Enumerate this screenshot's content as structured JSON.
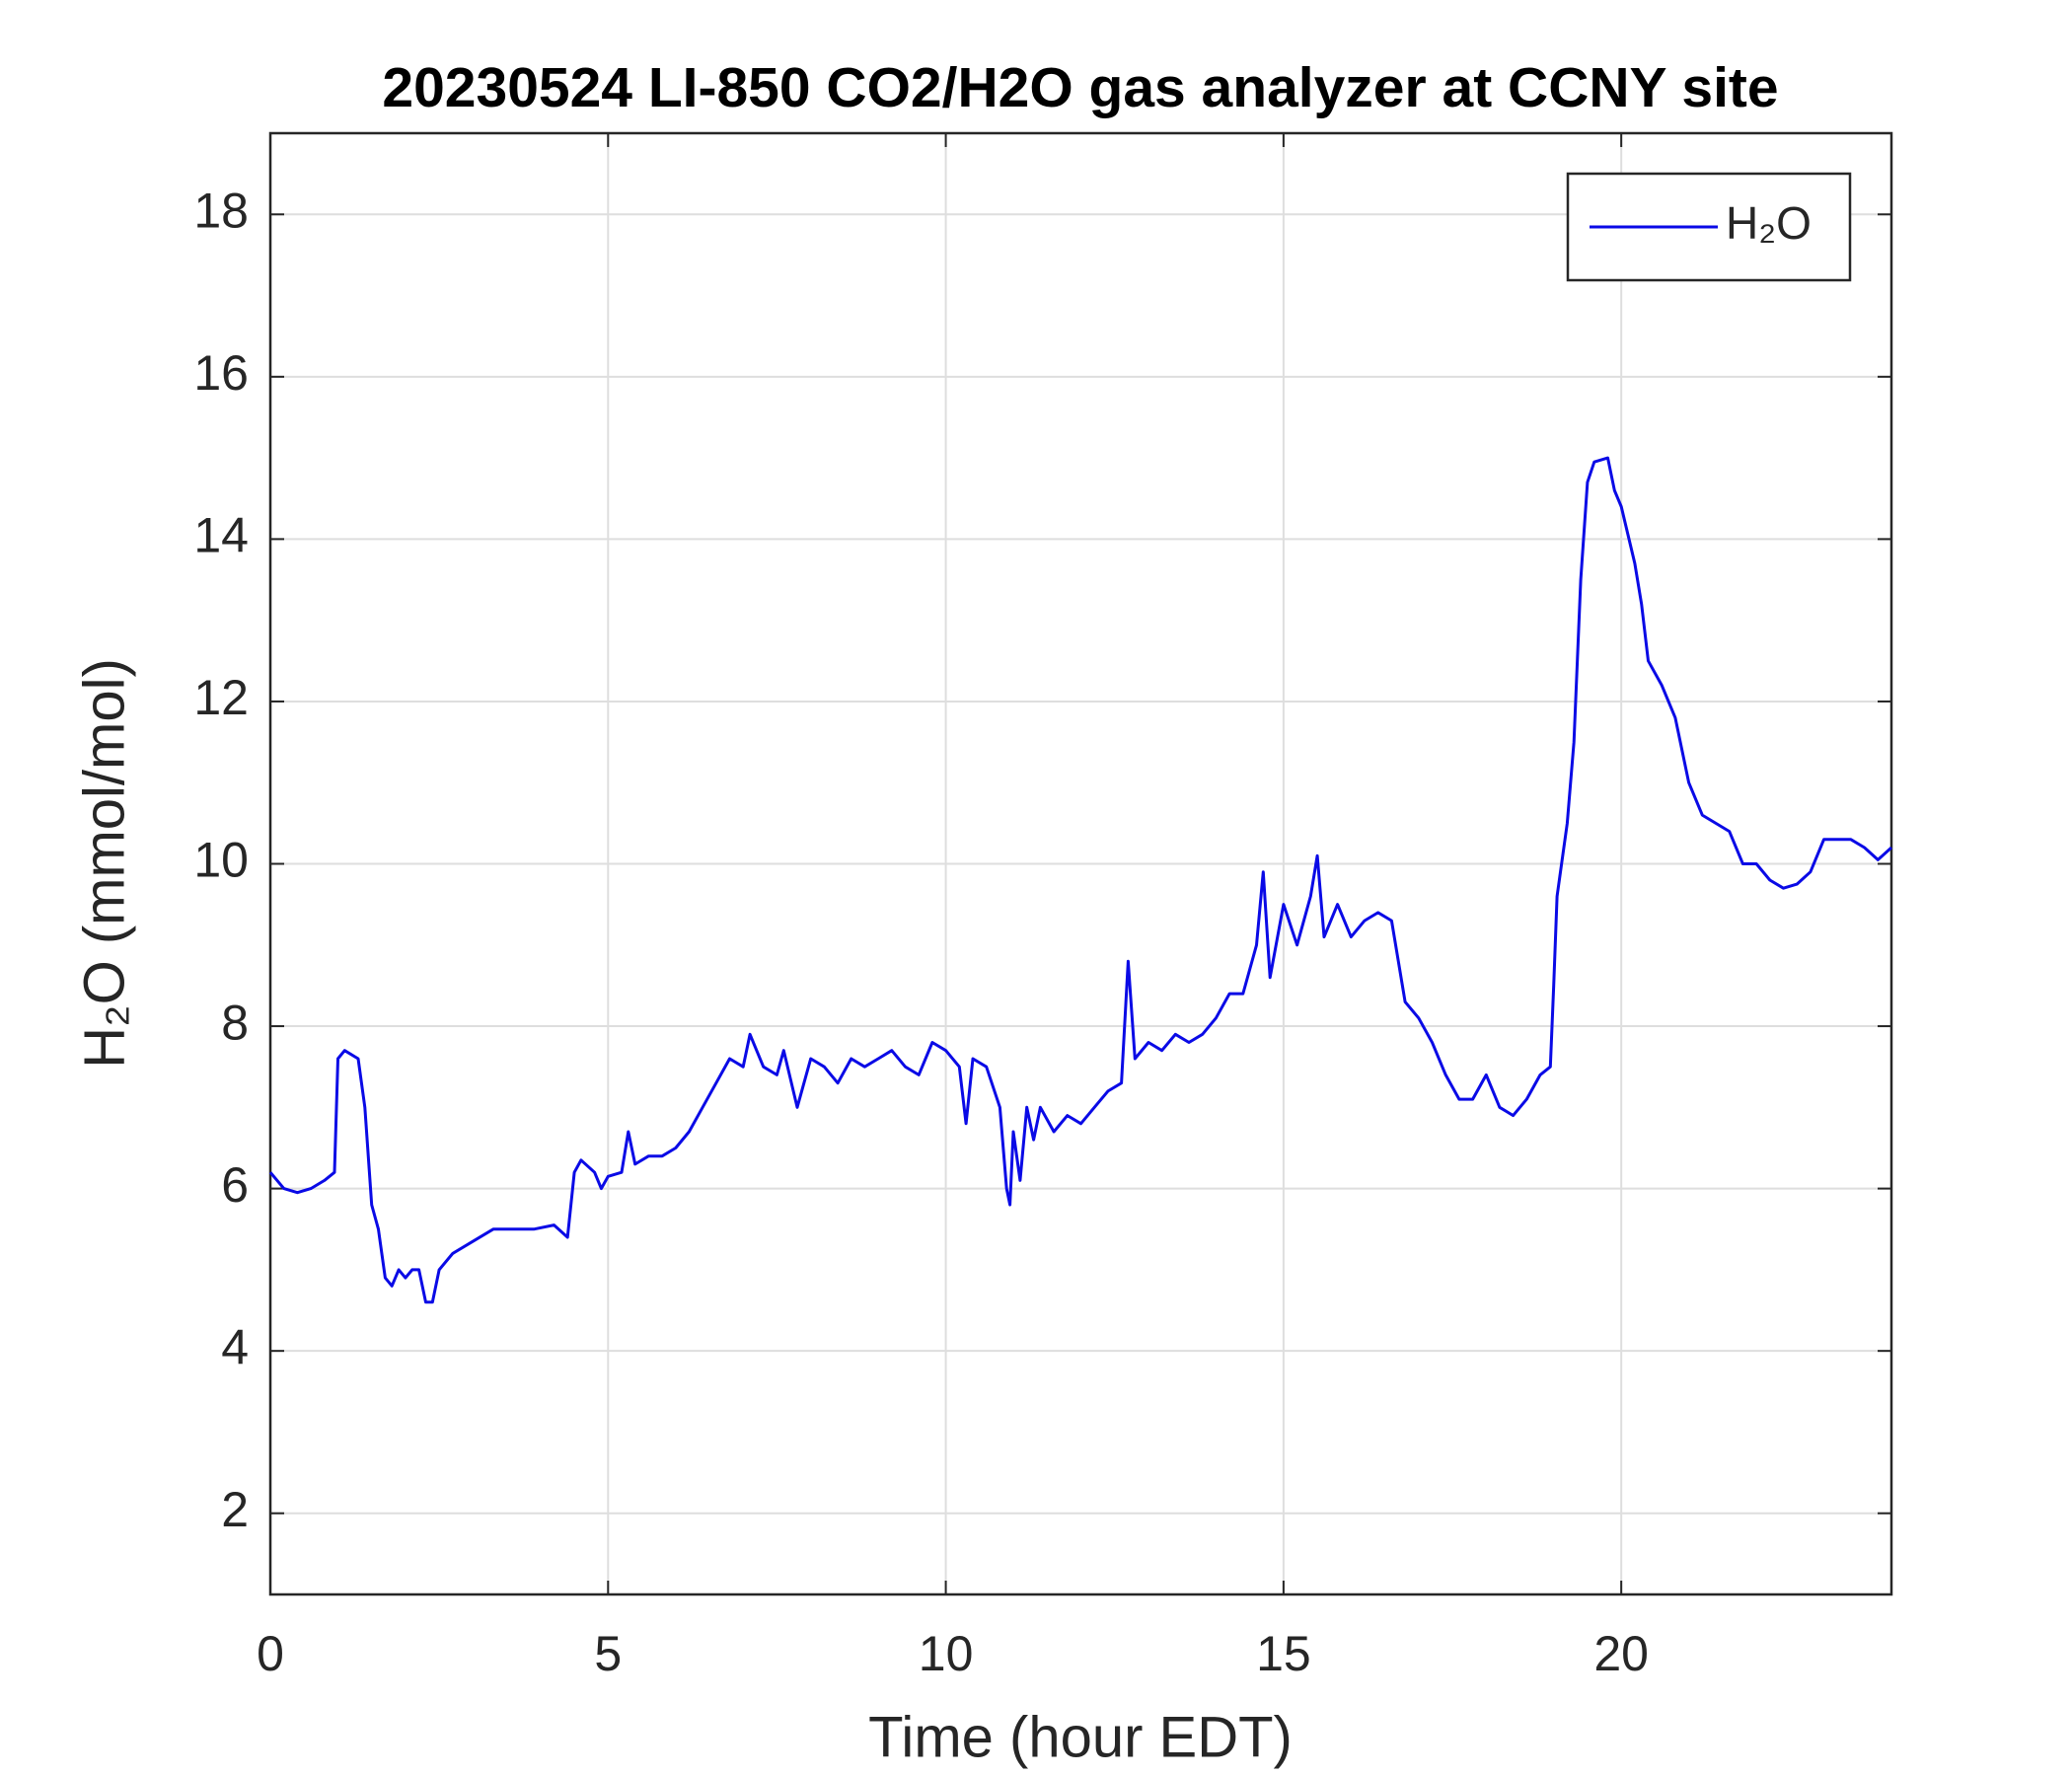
{
  "chart_data": {
    "type": "line",
    "title": "20230524 LI-850 CO2/H2O gas analyzer at CCNY site",
    "xlabel": "Time (hour EDT)",
    "ylabel": "H₂O (mmol/mol)",
    "x": [
      0,
      0.2,
      0.4,
      0.6,
      0.8,
      0.95,
      1.0,
      1.1,
      1.3,
      1.4,
      1.5,
      1.6,
      1.7,
      1.8,
      1.9,
      2.0,
      2.1,
      2.2,
      2.3,
      2.4,
      2.5,
      2.7,
      3.0,
      3.3,
      3.6,
      3.9,
      4.2,
      4.4,
      4.5,
      4.6,
      4.8,
      4.9,
      5.0,
      5.2,
      5.3,
      5.4,
      5.6,
      5.8,
      6.0,
      6.2,
      6.4,
      6.6,
      6.8,
      7.0,
      7.1,
      7.3,
      7.5,
      7.6,
      7.8,
      8.0,
      8.2,
      8.4,
      8.6,
      8.8,
      9.0,
      9.2,
      9.4,
      9.6,
      9.8,
      10.0,
      10.2,
      10.3,
      10.4,
      10.6,
      10.8,
      10.9,
      10.95,
      11.0,
      11.1,
      11.2,
      11.3,
      11.4,
      11.6,
      11.8,
      12.0,
      12.2,
      12.4,
      12.6,
      12.7,
      12.8,
      13.0,
      13.2,
      13.4,
      13.6,
      13.8,
      14.0,
      14.2,
      14.4,
      14.6,
      14.7,
      14.8,
      15.0,
      15.2,
      15.4,
      15.5,
      15.6,
      15.8,
      16.0,
      16.2,
      16.4,
      16.6,
      16.8,
      17.0,
      17.2,
      17.4,
      17.6,
      17.8,
      18.0,
      18.2,
      18.4,
      18.6,
      18.8,
      18.95,
      19.0,
      19.05,
      19.2,
      19.3,
      19.4,
      19.5,
      19.6,
      19.8,
      19.9,
      20.0,
      20.2,
      20.3,
      20.4,
      20.6,
      20.8,
      21.0,
      21.2,
      21.4,
      21.6,
      21.8,
      22.0,
      22.2,
      22.4,
      22.6,
      22.8,
      23.0,
      23.2,
      23.4,
      23.6,
      23.8,
      24.0
    ],
    "series": [
      {
        "name": "H₂O",
        "color": "#0a0ae6",
        "values": [
          6.2,
          6.0,
          5.95,
          6.0,
          6.1,
          6.2,
          7.6,
          7.7,
          7.6,
          7.0,
          5.8,
          5.5,
          4.9,
          4.8,
          5.0,
          4.9,
          5.0,
          5.0,
          4.6,
          4.6,
          5.0,
          5.2,
          5.35,
          5.5,
          5.5,
          5.5,
          5.55,
          5.4,
          6.2,
          6.35,
          6.2,
          6.0,
          6.15,
          6.2,
          6.7,
          6.3,
          6.4,
          6.4,
          6.5,
          6.7,
          7.0,
          7.3,
          7.6,
          7.5,
          7.9,
          7.5,
          7.4,
          7.7,
          7.0,
          7.6,
          7.5,
          7.3,
          7.6,
          7.5,
          7.6,
          7.7,
          7.5,
          7.4,
          7.8,
          7.7,
          7.5,
          6.8,
          7.6,
          7.5,
          7.0,
          6.0,
          5.8,
          6.7,
          6.1,
          7.0,
          6.6,
          7.0,
          6.7,
          6.9,
          6.8,
          7.0,
          7.2,
          7.3,
          8.8,
          7.6,
          7.8,
          7.7,
          7.9,
          7.8,
          7.9,
          8.1,
          8.4,
          8.4,
          9.0,
          9.9,
          8.6,
          9.5,
          9.0,
          9.6,
          10.1,
          9.1,
          9.5,
          9.1,
          9.3,
          9.4,
          9.3,
          8.3,
          8.1,
          7.8,
          7.4,
          7.1,
          7.1,
          7.4,
          7.0,
          6.9,
          7.1,
          7.4,
          7.5,
          8.5,
          9.6,
          10.5,
          11.5,
          13.5,
          14.7,
          14.95,
          15.0,
          14.6,
          14.4,
          13.7,
          13.2,
          12.5,
          12.2,
          11.8,
          11.0,
          10.6,
          10.5,
          10.4,
          10.0,
          10.0,
          9.8,
          9.7,
          9.75,
          9.9,
          10.3,
          10.3,
          10.3,
          10.2,
          10.05,
          10.2
        ]
      }
    ],
    "xlim": [
      0,
      24
    ],
    "xticks": [
      0,
      5,
      10,
      15,
      20
    ],
    "ylim": [
      1,
      19
    ],
    "yticks": [
      2,
      4,
      6,
      8,
      10,
      12,
      14,
      16,
      18
    ],
    "grid": true,
    "legend": "upper right"
  }
}
